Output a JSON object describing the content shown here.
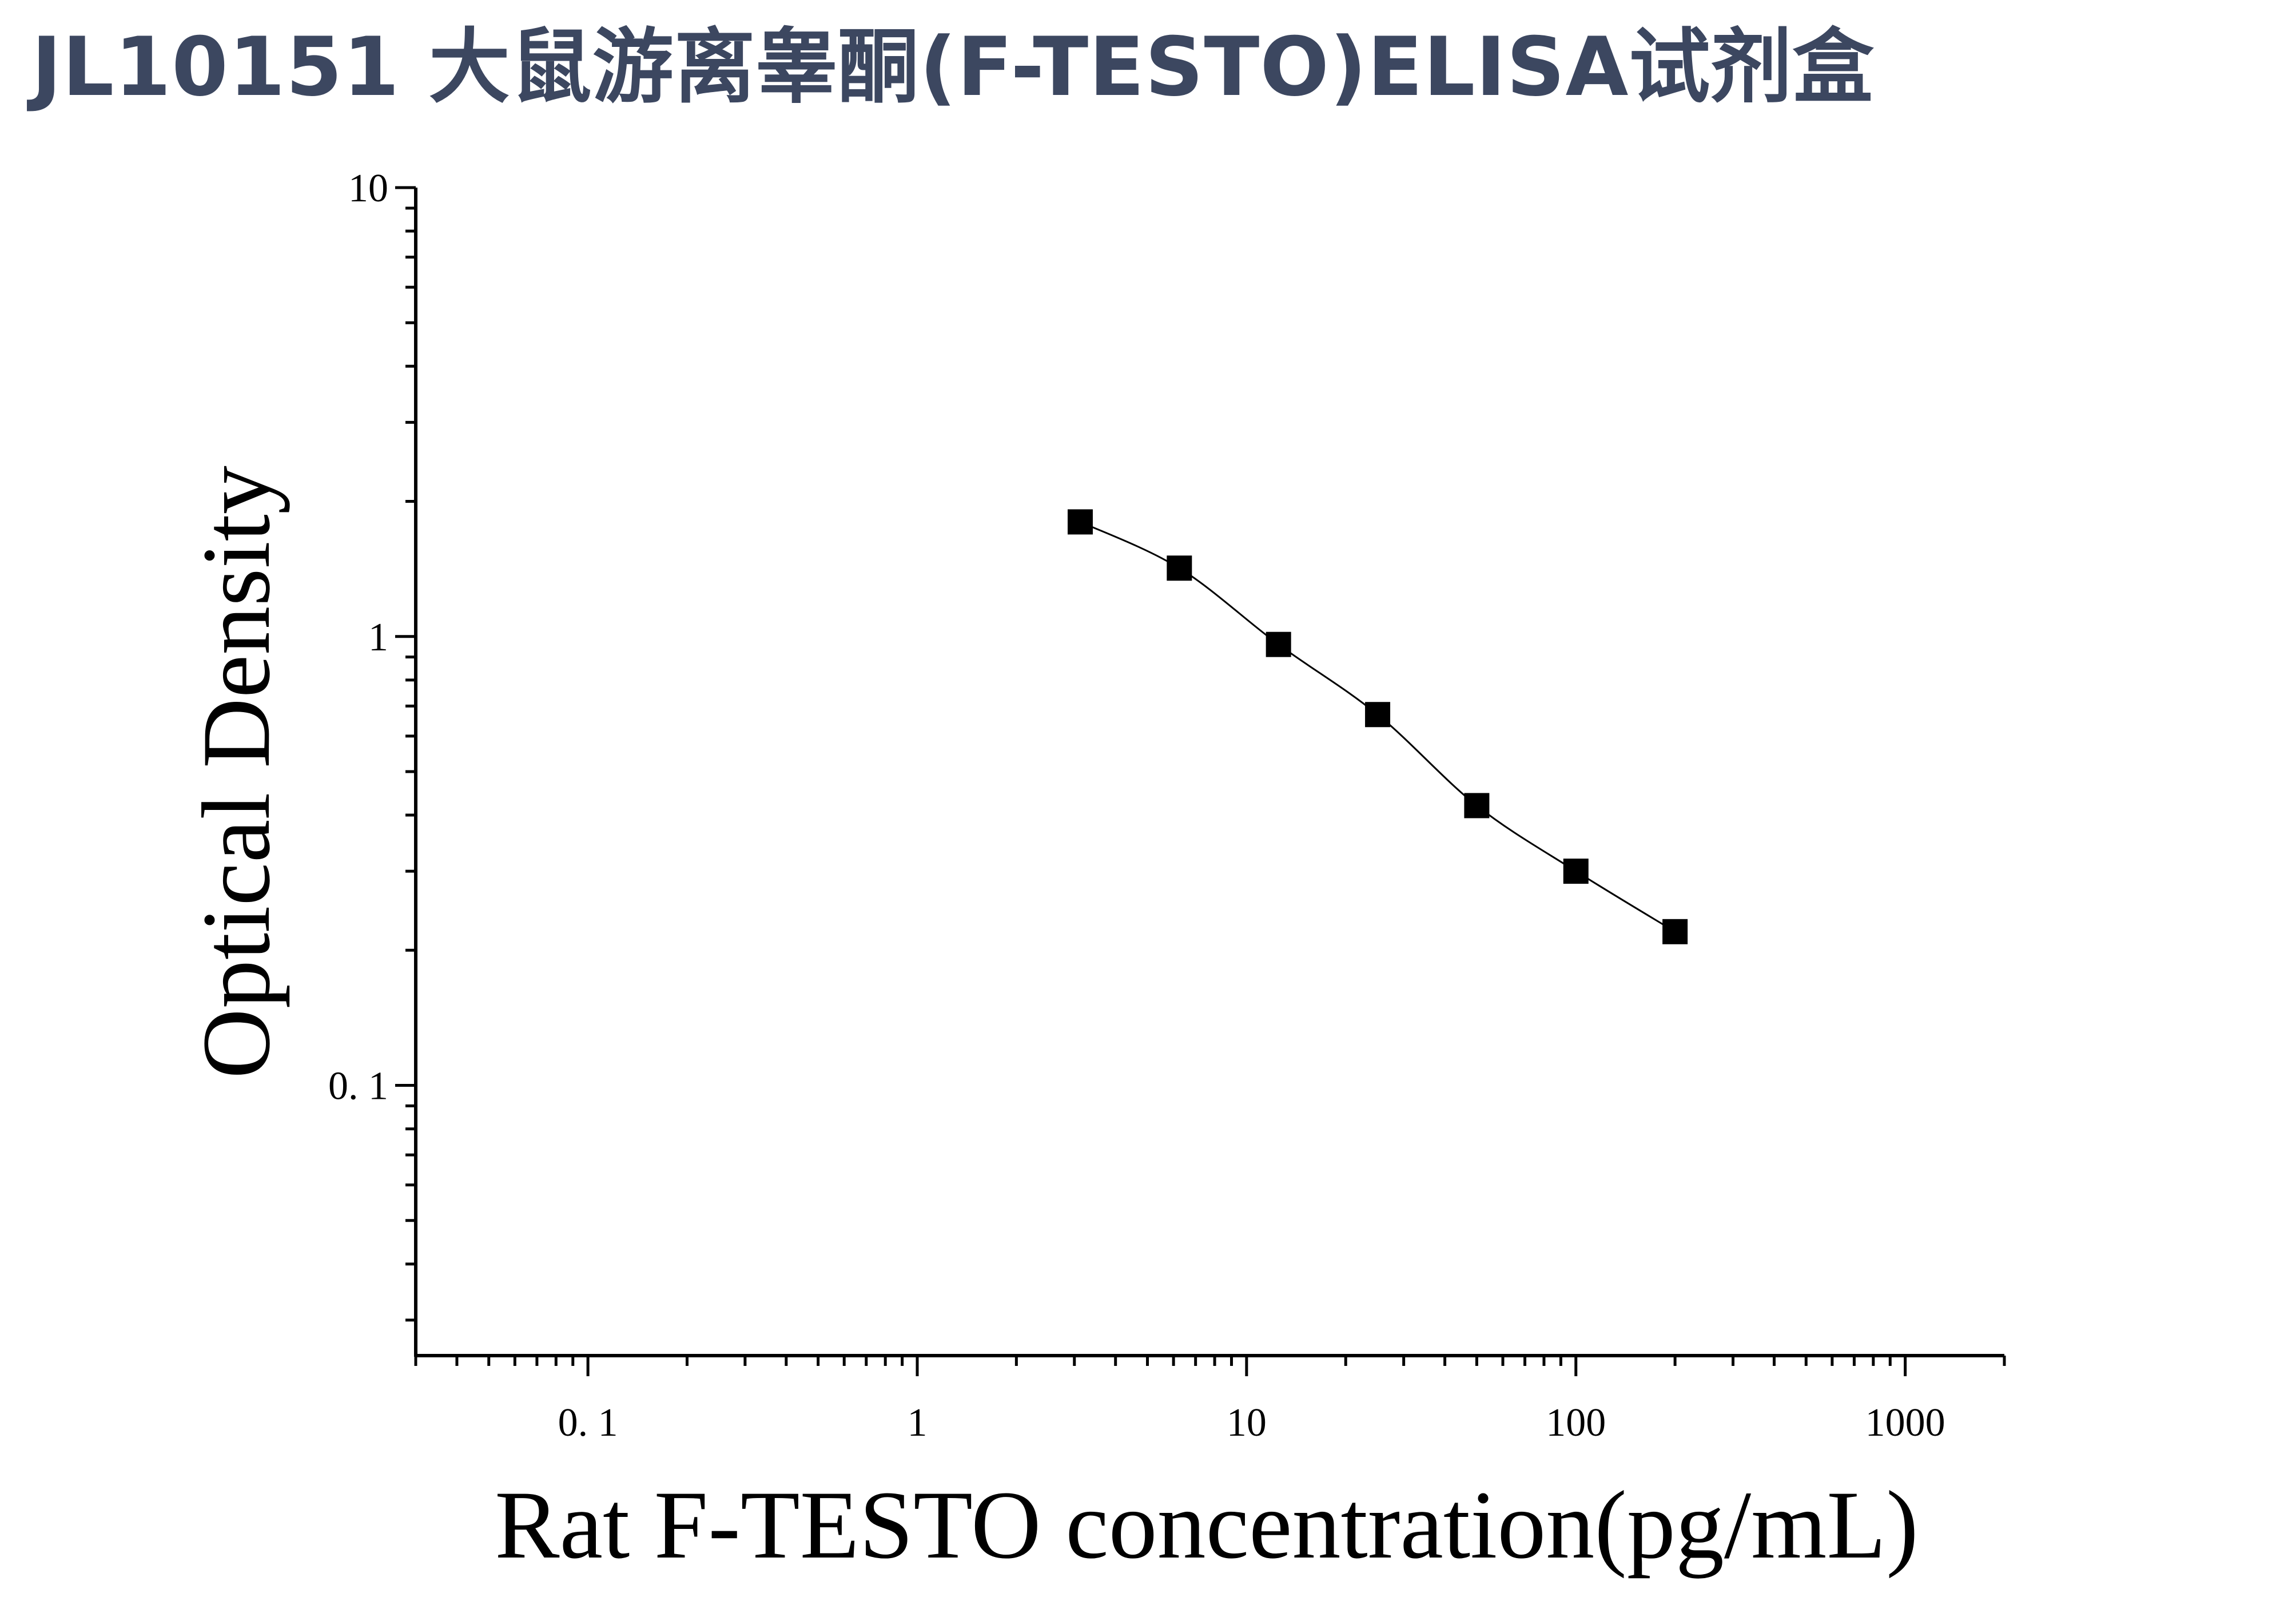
{
  "title": "JL10151 大鼠游离睾酮(F-TESTO)ELISA试剂盒",
  "chart_data": {
    "type": "scatter",
    "title": "JL10151 大鼠游离睾酮(F-TESTO)ELISA试剂盒",
    "xlabel": "Rat F-TESTO concentration(pg/mL)",
    "ylabel": "Optical Density",
    "x_scale": "log",
    "y_scale": "log",
    "xlim": [
      0.03,
      2000
    ],
    "ylim": [
      0.025,
      10
    ],
    "x_ticks": [
      {
        "value": 0.1,
        "label": "0. 1"
      },
      {
        "value": 1,
        "label": "1"
      },
      {
        "value": 10,
        "label": "10"
      },
      {
        "value": 100,
        "label": "100"
      },
      {
        "value": 1000,
        "label": "1000"
      }
    ],
    "y_ticks": [
      {
        "value": 0.1,
        "label": "0. 1"
      },
      {
        "value": 1,
        "label": "1"
      },
      {
        "value": 10,
        "label": "10"
      }
    ],
    "grid": false,
    "legend": "none",
    "marker": "square",
    "color": "#000000",
    "series": [
      {
        "x": [
          3.125,
          6.25,
          12.5,
          25,
          50,
          100,
          200
        ],
        "y": [
          1.8,
          1.42,
          0.96,
          0.67,
          0.42,
          0.3,
          0.22
        ]
      }
    ]
  }
}
